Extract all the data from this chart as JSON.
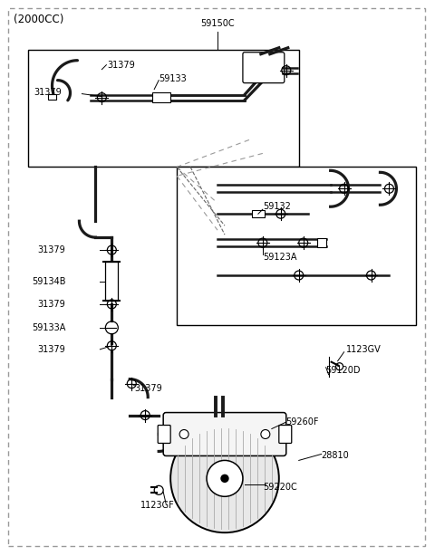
{
  "bg_color": "#ffffff",
  "title": "(2000CC)",
  "label_59150C": "59150C",
  "label_31379": "31379",
  "label_59133": "59133",
  "label_1123GV": "1123GV",
  "label_59120D": "59120D",
  "label_59134B": "59134B",
  "label_59133A": "59133A",
  "label_59132": "59132",
  "label_59123A": "59123A",
  "label_59260F": "59260F",
  "label_28810": "28810",
  "label_1123GF": "1123GF",
  "label_59220C": "59220C",
  "hose_color": "#1a1a1a",
  "hose_lw": 1.8,
  "label_fs": 7.0,
  "outer_dash_color": "#888888"
}
